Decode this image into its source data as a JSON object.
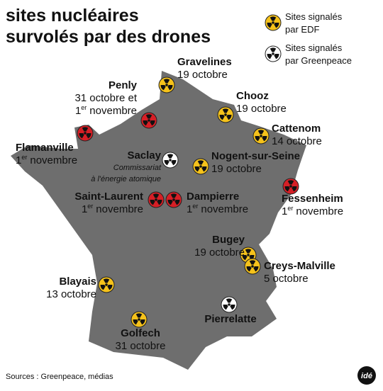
{
  "title": [
    "sites nucléaires",
    "survolés par des drones"
  ],
  "legend": [
    {
      "label": [
        "Sites signalés",
        "par EDF"
      ],
      "color": "#f5c21b"
    },
    {
      "label": [
        "Sites signalés",
        "par Greenpeace"
      ],
      "color": "#ffffff"
    }
  ],
  "sites": [
    {
      "name": "Gravelines",
      "color": "#f5c21b",
      "date": [
        [
          {
            "text": "19 octobre"
          }
        ]
      ]
    },
    {
      "name": "Penly",
      "color": "#d61f26",
      "date": [
        [
          {
            "text": "31 octobre et"
          }
        ],
        [
          {
            "text": "1"
          },
          {
            "text": "er",
            "sup": true
          },
          {
            "text": "novembre"
          }
        ]
      ]
    },
    {
      "name": "Flamanville",
      "color": "#d61f26",
      "date": [
        [
          {
            "text": "1"
          },
          {
            "text": "er",
            "sup": true
          },
          {
            "text": "novembre"
          }
        ]
      ]
    },
    {
      "name": "Chooz",
      "color": "#f5c21b",
      "date": [
        [
          {
            "text": "19 octobre"
          }
        ]
      ]
    },
    {
      "name": "Cattenom",
      "color": "#f5c21b",
      "date": [
        [
          {
            "text": "14 octobre"
          }
        ]
      ]
    },
    {
      "name": "Saclay",
      "color": "#ffffff",
      "note": [
        "Commissariat",
        "à l'énergie atomique"
      ]
    },
    {
      "name": "Nogent-sur-Seine",
      "color": "#f5c21b",
      "date": [
        [
          {
            "text": "19 octobre"
          }
        ]
      ]
    },
    {
      "name": "Fessenheim",
      "color": "#d61f26",
      "date": [
        [
          {
            "text": "1"
          },
          {
            "text": "er",
            "sup": true
          },
          {
            "text": "novembre"
          }
        ]
      ]
    },
    {
      "name": "Saint-Laurent",
      "color": "#d61f26",
      "date": [
        [
          {
            "text": "1"
          },
          {
            "text": "er",
            "sup": true
          },
          {
            "text": "novembre"
          }
        ]
      ]
    },
    {
      "name": "Dampierre",
      "color": "#d61f26",
      "date": [
        [
          {
            "text": "1"
          },
          {
            "text": "er",
            "sup": true
          },
          {
            "text": "novembre"
          }
        ]
      ]
    },
    {
      "name": "Bugey",
      "color": "#f5c21b",
      "date": [
        [
          {
            "text": "19 octobre"
          }
        ]
      ]
    },
    {
      "name": "Creys-Malville",
      "color": "#f5c21b",
      "date": [
        [
          {
            "text": "5 octobre"
          }
        ]
      ]
    },
    {
      "name": "Blayais",
      "color": "#f5c21b",
      "date": [
        [
          {
            "text": "13 octobre"
          }
        ]
      ]
    },
    {
      "name": "Golfech",
      "color": "#f5c21b",
      "date": [
        [
          {
            "text": "31 octobre"
          }
        ]
      ]
    },
    {
      "name": "Pierrelatte",
      "color": "#ffffff"
    }
  ],
  "source": "Sources : Greenpeace, médias",
  "logo": "idé"
}
